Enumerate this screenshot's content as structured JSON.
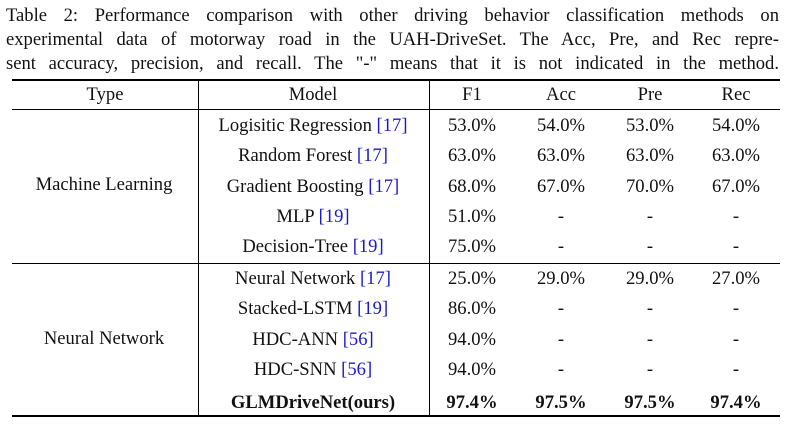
{
  "caption": {
    "lines": [
      "Table 2: Performance comparison with other driving behavior classification methods on",
      "experimental data of motorway road in the UAH-DriveSet. The Acc, Pre, and Rec repre-",
      "sent accuracy, precision, and recall. The \"-\" means that it is not indicated in the method."
    ]
  },
  "headers": {
    "type": "Type",
    "model": "Model",
    "f1": "F1",
    "acc": "Acc",
    "pre": "Pre",
    "rec": "Rec"
  },
  "groups": [
    {
      "type": "Machine Learning"
    },
    {
      "type": "Neural Network"
    }
  ],
  "rows": [
    {
      "model": "Logisitic Regression",
      "cite": "[17]",
      "f1": "53.0%",
      "acc": "54.0%",
      "pre": "53.0%",
      "rec": "54.0%"
    },
    {
      "model": "Random Forest",
      "cite": "[17]",
      "f1": "63.0%",
      "acc": "63.0%",
      "pre": "63.0%",
      "rec": "63.0%"
    },
    {
      "model": "Gradient Boosting",
      "cite": "[17]",
      "f1": "68.0%",
      "acc": "67.0%",
      "pre": "70.0%",
      "rec": "67.0%"
    },
    {
      "model": "MLP",
      "cite": "[19]",
      "f1": "51.0%",
      "acc": "-",
      "pre": "-",
      "rec": "-"
    },
    {
      "model": "Decision-Tree",
      "cite": "[19]",
      "f1": "75.0%",
      "acc": "-",
      "pre": "-",
      "rec": "-"
    },
    {
      "model": "Neural Network",
      "cite": "[17]",
      "f1": "25.0%",
      "acc": "29.0%",
      "pre": "29.0%",
      "rec": "27.0%"
    },
    {
      "model": "Stacked-LSTM",
      "cite": "[19]",
      "f1": "86.0%",
      "acc": "-",
      "pre": "-",
      "rec": "-"
    },
    {
      "model": "HDC-ANN",
      "cite": "[56]",
      "f1": "94.0%",
      "acc": "-",
      "pre": "-",
      "rec": "-"
    },
    {
      "model": "HDC-SNN",
      "cite": "[56]",
      "f1": "94.0%",
      "acc": "-",
      "pre": "-",
      "rec": "-"
    },
    {
      "model": "GLMDriveNet(ours)",
      "cite": "",
      "f1": "97.4%",
      "acc": "97.5%",
      "pre": "97.5%",
      "rec": "97.4%",
      "bold": true
    }
  ]
}
